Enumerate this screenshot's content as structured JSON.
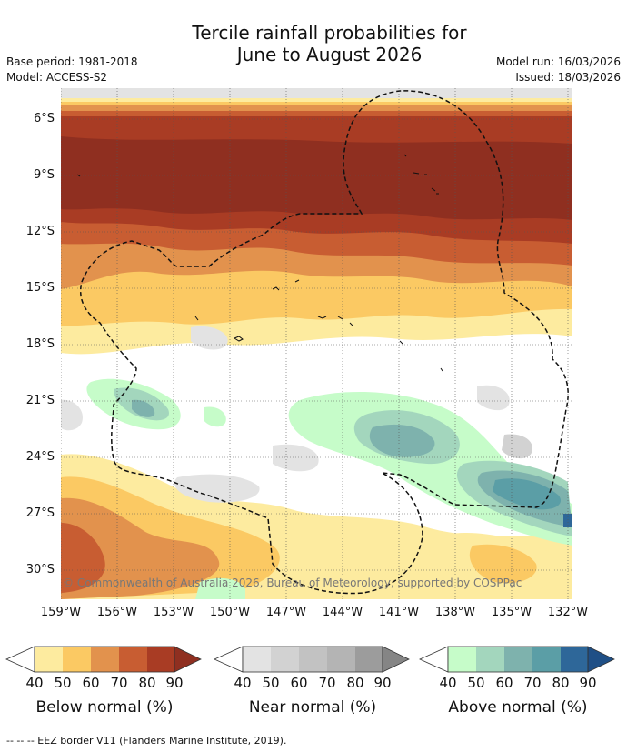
{
  "title": {
    "line1": "Tercile rainfall probabilities for",
    "line2": "June to August 2026"
  },
  "meta": {
    "base_period": "Base period: 1981-2018",
    "model": "Model: ACCESS-S2",
    "model_run": "Model run: 16/03/2026",
    "issued": "Issued: 18/03/2026"
  },
  "map": {
    "lat_labels": [
      "6°S",
      "9°S",
      "12°S",
      "15°S",
      "18°S",
      "21°S",
      "24°S",
      "27°S",
      "30°S"
    ],
    "lon_labels": [
      "159°W",
      "156°W",
      "153°W",
      "150°W",
      "147°W",
      "144°W",
      "141°W",
      "138°W",
      "135°W",
      "132°W"
    ],
    "copyright": "© Commonwealth of Australia 2026, Bureau of Meteorology, supported by COSPPac"
  },
  "colors": {
    "below": [
      "#fdeb9f",
      "#fbc963",
      "#e2924d",
      "#c85d32",
      "#a93c24",
      "#8f2f20"
    ],
    "near": [
      "#ffffff",
      "#e3e3e3",
      "#d2d2d2",
      "#c2c2c2",
      "#b4b4b4",
      "#9c9c9c",
      "#858585"
    ],
    "above": [
      "#ffffff",
      "#c6fcc9",
      "#a3d6bd",
      "#7eb2ad",
      "#5b9ea6",
      "#2e6799",
      "#1f4f86"
    ],
    "eez_line": "#111111"
  },
  "legends": [
    {
      "title": "Below normal (%)",
      "ticks": [
        "40",
        "50",
        "60",
        "70",
        "80",
        "90"
      ]
    },
    {
      "title": "Near normal (%)",
      "ticks": [
        "40",
        "50",
        "60",
        "70",
        "80",
        "90"
      ]
    },
    {
      "title": "Above normal (%)",
      "ticks": [
        "40",
        "50",
        "60",
        "70",
        "80",
        "90"
      ]
    }
  ],
  "footer": "--  --  -- EEZ border V11 (Flanders Marine Institute, 2019)."
}
